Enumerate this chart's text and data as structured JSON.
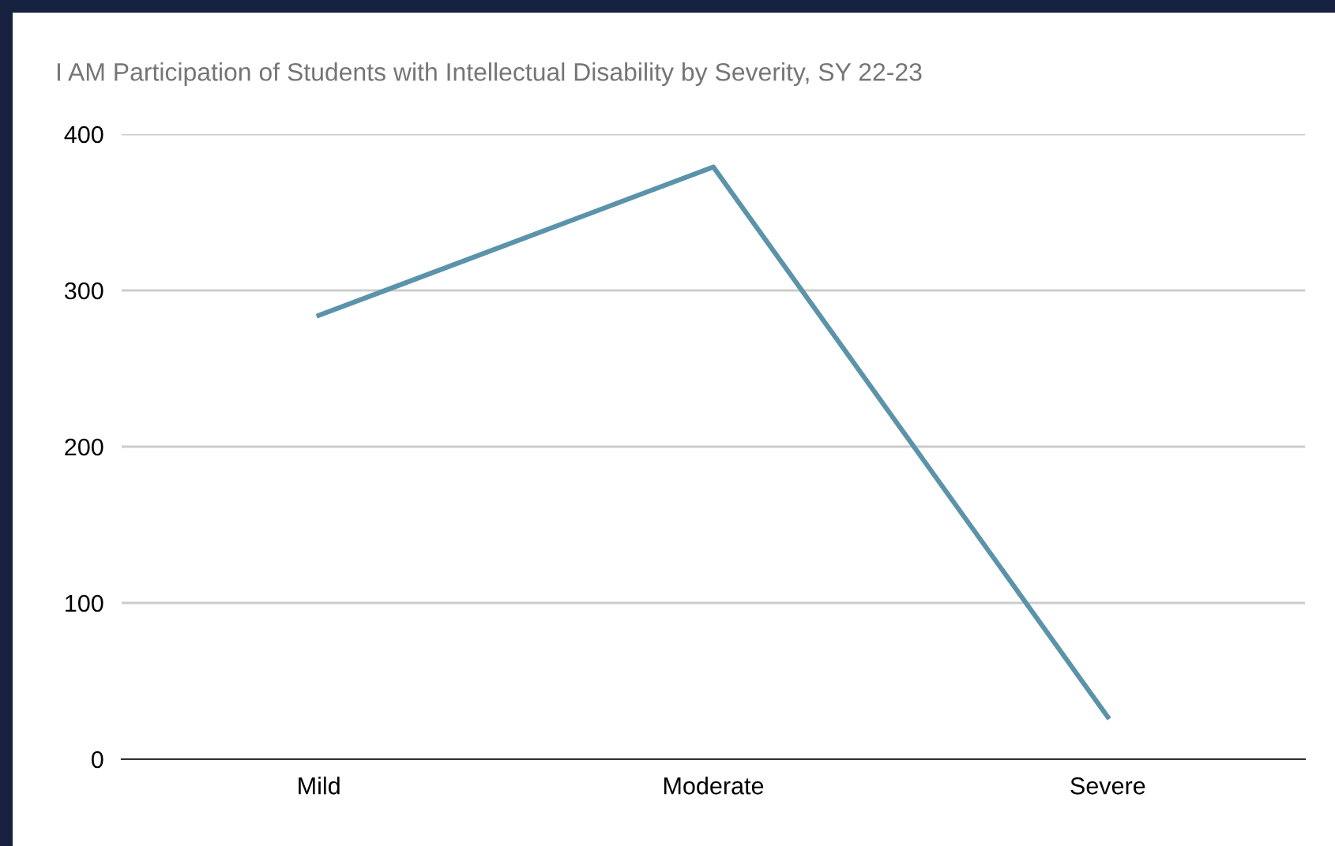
{
  "chart_data": {
    "type": "line",
    "title": "I AM Participation of Students with Intellectual Disability by Severity, SY 22-23",
    "categories": [
      "Mild",
      "Moderate",
      "Severe"
    ],
    "series": [
      {
        "color": "#5b93aa",
        "values": [
          284,
          379,
          27
        ]
      }
    ],
    "ylim": [
      0,
      400
    ],
    "yticks": [
      0,
      100,
      200,
      300,
      400
    ],
    "grid": "y",
    "marker": "none",
    "line_style": "solid"
  }
}
